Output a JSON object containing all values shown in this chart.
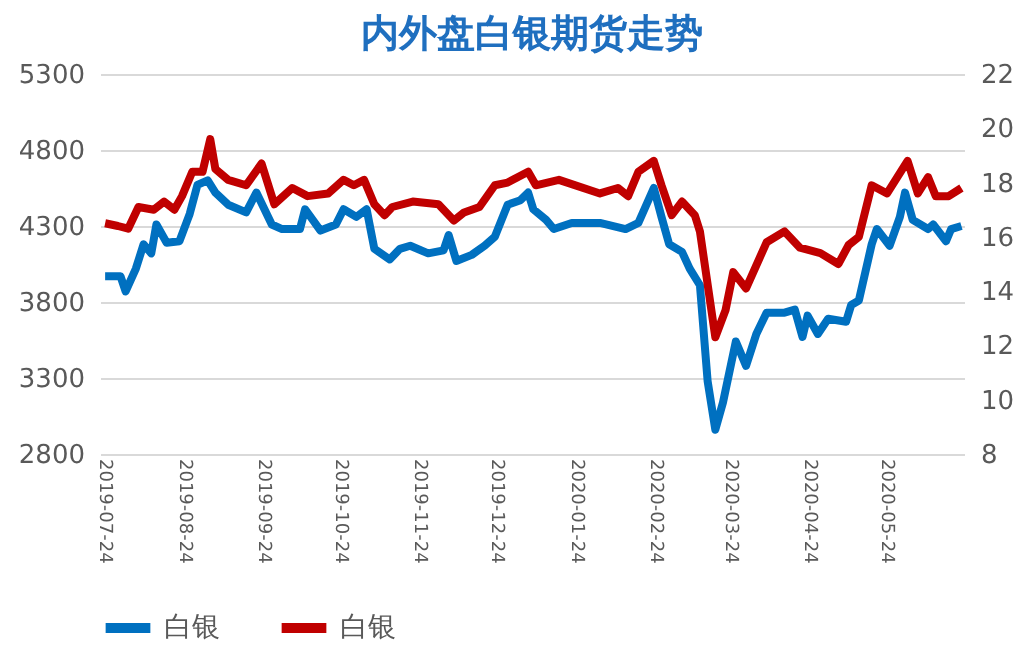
{
  "chart_data": {
    "type": "line",
    "title": "内外盘白银期货走势",
    "xlim": [
      "2019-07-22",
      "2020-06-23"
    ],
    "xticks": [
      "2019-07-24",
      "2019-08-24",
      "2019-09-24",
      "2019-10-24",
      "2019-11-24",
      "2019-12-24",
      "2020-01-24",
      "2020-02-24",
      "2020-03-24",
      "2020-04-24",
      "2020-05-24"
    ],
    "ylim": [
      2800,
      5300
    ],
    "yticks": [
      2800,
      3300,
      3800,
      4300,
      4800,
      5300
    ],
    "y2lim": [
      8,
      22
    ],
    "y2ticks": [
      8,
      10,
      12,
      14,
      16,
      18,
      20,
      22
    ],
    "grid": "y",
    "legend": "bottom",
    "line_style": "solid",
    "marker": "none",
    "series": [
      {
        "name": "白银",
        "color": "#0070c0",
        "x": [
          "2019-07-24",
          "2019-07-30",
          "2019-08-01",
          "2019-08-05",
          "2019-08-08",
          "2019-08-11",
          "2019-08-13",
          "2019-08-17",
          "2019-08-22",
          "2019-08-26",
          "2019-08-29",
          "2019-09-02",
          "2019-09-05",
          "2019-09-10",
          "2019-09-17",
          "2019-09-21",
          "2019-09-27",
          "2019-10-01",
          "2019-10-08",
          "2019-10-10",
          "2019-10-16",
          "2019-10-22",
          "2019-10-25",
          "2019-10-30",
          "2019-11-03",
          "2019-11-06",
          "2019-11-12",
          "2019-11-16",
          "2019-11-20",
          "2019-11-27",
          "2019-12-03",
          "2019-12-05",
          "2019-12-08",
          "2019-12-14",
          "2019-12-19",
          "2019-12-23",
          "2019-12-28",
          "2020-01-02",
          "2020-01-05",
          "2020-01-07",
          "2020-01-12",
          "2020-01-15",
          "2020-01-22",
          "2020-02-02",
          "2020-02-12",
          "2020-02-17",
          "2020-02-23",
          "2020-02-26",
          "2020-02-29",
          "2020-03-05",
          "2020-03-08",
          "2020-03-12",
          "2020-03-15",
          "2020-03-18",
          "2020-03-21",
          "2020-03-26",
          "2020-03-30",
          "2020-04-03",
          "2020-04-07",
          "2020-04-14",
          "2020-04-18",
          "2020-04-21",
          "2020-04-23",
          "2020-04-27",
          "2020-05-01",
          "2020-05-08",
          "2020-05-10",
          "2020-05-13",
          "2020-05-18",
          "2020-05-20",
          "2020-05-25",
          "2020-05-29",
          "2020-05-31",
          "2020-06-03",
          "2020-06-09",
          "2020-06-11",
          "2020-06-16",
          "2020-06-18",
          "2020-06-22"
        ],
        "values": [
          3970,
          3970,
          3870,
          4020,
          4180,
          4120,
          4310,
          4190,
          4200,
          4380,
          4570,
          4600,
          4520,
          4440,
          4390,
          4520,
          4310,
          4280,
          4280,
          4410,
          4270,
          4310,
          4410,
          4360,
          4410,
          4150,
          4080,
          4150,
          4170,
          4120,
          4140,
          4240,
          4070,
          4110,
          4170,
          4230,
          4440,
          4470,
          4520,
          4410,
          4340,
          4280,
          4320,
          4320,
          4280,
          4320,
          4550,
          4360,
          4180,
          4130,
          4020,
          3910,
          3280,
          2960,
          3140,
          3540,
          3380,
          3590,
          3730,
          3730,
          3750,
          3570,
          3710,
          3590,
          3690,
          3670,
          3780,
          3810,
          4180,
          4280,
          4170,
          4360,
          4520,
          4340,
          4280,
          4310,
          4200,
          4280,
          4300
        ]
      },
      {
        "name": "白银",
        "color": "#c00000",
        "axis": "y2",
        "x": [
          "2019-07-24",
          "2019-07-29",
          "2019-08-02",
          "2019-08-06",
          "2019-08-12",
          "2019-08-16",
          "2019-08-20",
          "2019-08-23",
          "2019-08-27",
          "2019-08-31",
          "2019-09-03",
          "2019-09-05",
          "2019-09-10",
          "2019-09-17",
          "2019-09-23",
          "2019-09-28",
          "2019-10-05",
          "2019-10-11",
          "2019-10-19",
          "2019-10-25",
          "2019-10-29",
          "2019-11-02",
          "2019-11-06",
          "2019-11-10",
          "2019-11-13",
          "2019-11-21",
          "2019-12-01",
          "2019-12-07",
          "2019-12-11",
          "2019-12-17",
          "2019-12-23",
          "2019-12-28",
          "2020-01-05",
          "2020-01-08",
          "2020-01-17",
          "2020-02-02",
          "2020-02-09",
          "2020-02-13",
          "2020-02-17",
          "2020-02-23",
          "2020-02-26",
          "2020-03-01",
          "2020-03-05",
          "2020-03-10",
          "2020-03-12",
          "2020-03-18",
          "2020-03-22",
          "2020-03-25",
          "2020-03-30",
          "2020-04-07",
          "2020-04-14",
          "2020-04-20",
          "2020-04-28",
          "2020-05-05",
          "2020-05-09",
          "2020-05-13",
          "2020-05-18",
          "2020-05-24",
          "2020-05-28",
          "2020-06-01",
          "2020-06-05",
          "2020-06-09",
          "2020-06-12",
          "2020-06-17",
          "2020-06-22"
        ],
        "values": [
          16.5,
          16.4,
          16.3,
          17.1,
          17.0,
          17.3,
          17.0,
          17.5,
          18.4,
          18.4,
          19.6,
          18.5,
          18.1,
          17.9,
          18.7,
          17.2,
          17.8,
          17.5,
          17.6,
          18.1,
          17.9,
          18.1,
          17.2,
          16.8,
          17.1,
          17.3,
          17.2,
          16.6,
          16.9,
          17.1,
          17.9,
          18.0,
          18.4,
          17.9,
          18.1,
          17.6,
          17.8,
          17.5,
          18.4,
          18.8,
          17.9,
          16.8,
          17.3,
          16.8,
          16.2,
          12.3,
          13.3,
          14.7,
          14.1,
          15.8,
          16.2,
          15.6,
          15.4,
          15.0,
          15.7,
          16.0,
          17.9,
          17.6,
          18.2,
          18.8,
          17.6,
          18.2,
          17.5,
          17.5,
          17.8
        ]
      }
    ]
  }
}
